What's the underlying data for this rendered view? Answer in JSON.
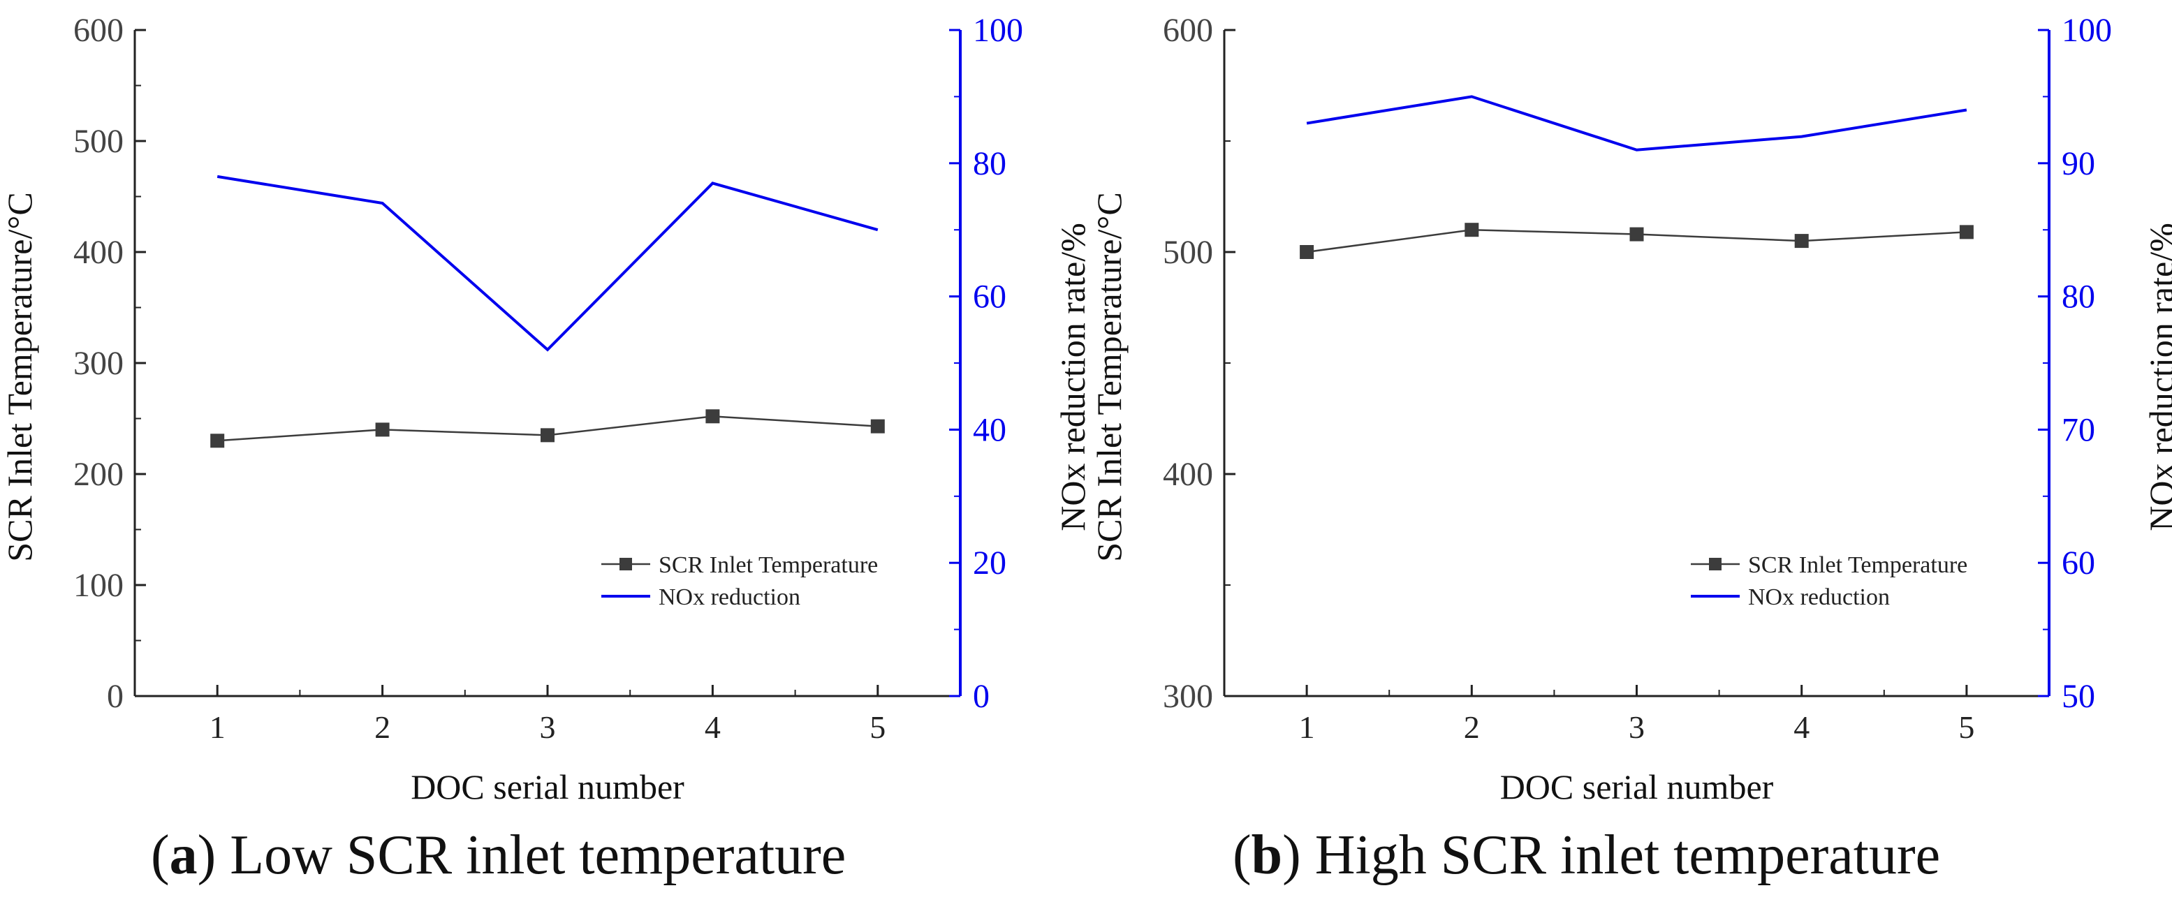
{
  "captions": [
    {
      "letter": "a",
      "text": "Low SCR inlet temperature"
    },
    {
      "letter": "b",
      "text": "High SCR inlet temperature"
    }
  ],
  "colors": {
    "temperature": "#3c3c3c",
    "nox": "#0000ee",
    "axis": "#222222",
    "right_axis": "#0000ee"
  },
  "chart_data": [
    {
      "type": "line",
      "x": [
        1,
        2,
        3,
        4,
        5
      ],
      "xlabel": "DOC serial number",
      "ylabel": "SCR Inlet Temperature/°C",
      "y2label": "NOx reduction rate/%",
      "xlim": [
        0.5,
        5.5
      ],
      "ylim": [
        0,
        600
      ],
      "y2lim": [
        0,
        100
      ],
      "yticks": [
        0,
        100,
        200,
        300,
        400,
        500,
        600
      ],
      "y2ticks": [
        0,
        20,
        40,
        60,
        80,
        100
      ],
      "series": [
        {
          "name": "SCR Inlet Temperature",
          "axis": "left",
          "marker": "square",
          "values": [
            230,
            240,
            235,
            252,
            243
          ]
        },
        {
          "name": "NOx reduction",
          "axis": "right",
          "marker": "none",
          "values": [
            78,
            74,
            52,
            77,
            70
          ]
        }
      ],
      "legend": "bottom-right",
      "grid": false
    },
    {
      "type": "line",
      "x": [
        1,
        2,
        3,
        4,
        5
      ],
      "xlabel": "DOC serial number",
      "ylabel": "SCR Inlet Temperature/°C",
      "y2label": "NOx reduction rate/%",
      "xlim": [
        0.5,
        5.5
      ],
      "ylim": [
        300,
        600
      ],
      "y2lim": [
        50,
        100
      ],
      "yticks": [
        300,
        400,
        500,
        600
      ],
      "y2ticks": [
        50,
        60,
        70,
        80,
        90,
        100
      ],
      "series": [
        {
          "name": "SCR Inlet Temperature",
          "axis": "left",
          "marker": "square",
          "values": [
            500,
            510,
            508,
            505,
            509
          ]
        },
        {
          "name": "NOx reduction",
          "axis": "right",
          "marker": "none",
          "values": [
            93,
            95,
            91,
            92,
            94
          ]
        }
      ],
      "legend": "bottom-right",
      "grid": false
    }
  ]
}
